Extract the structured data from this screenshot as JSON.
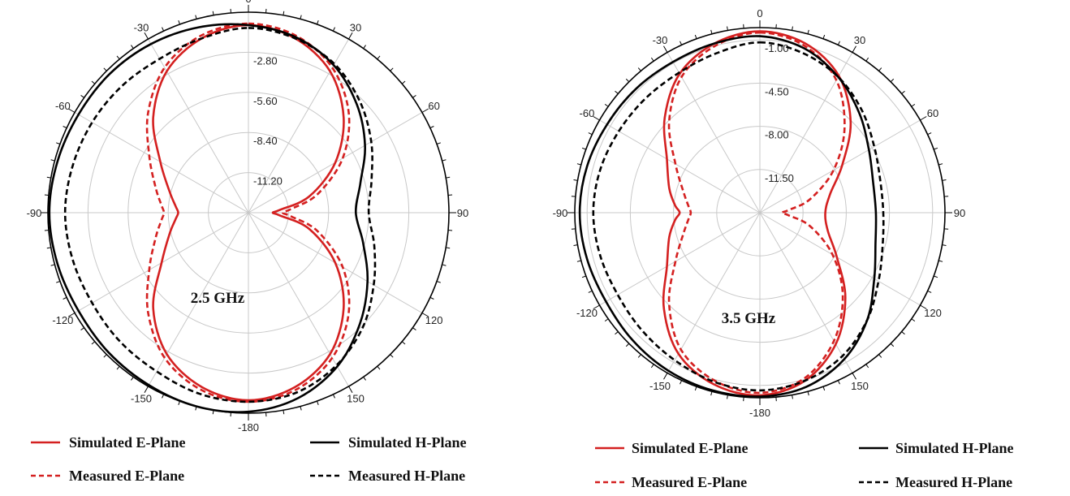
{
  "chart_data": [
    {
      "type": "polar-line",
      "annotation": "2.5 GHz",
      "angle_ticks": [
        "0",
        "30",
        "60",
        "90",
        "120",
        "150",
        "-180",
        "-150",
        "-120",
        "-90",
        "-60",
        "-30"
      ],
      "angle_tick_values": [
        0,
        30,
        60,
        90,
        120,
        150,
        180,
        210,
        240,
        270,
        300,
        330
      ],
      "radial_ticks": [
        "-2.80",
        "-5.60",
        "-8.40",
        "-11.20"
      ],
      "radial_tick_values": [
        -2.8,
        -5.6,
        -8.4,
        -11.2
      ],
      "rlim": [
        -14,
        0
      ],
      "grid": true,
      "legend_position": "bottom",
      "series": [
        {
          "name": "Simulated E-Plane",
          "color": "#d42020",
          "dash": "solid",
          "theta": [
            0,
            15,
            30,
            45,
            60,
            75,
            85,
            90,
            95,
            105,
            120,
            135,
            150,
            165,
            180,
            195,
            210,
            225,
            240,
            255,
            265,
            270,
            275,
            285,
            300,
            315,
            330,
            345
          ],
          "r": [
            -0.9,
            -1.4,
            -2.6,
            -4.6,
            -7.0,
            -9.6,
            -11.8,
            -12.3,
            -11.8,
            -9.6,
            -7.0,
            -4.6,
            -2.6,
            -1.4,
            -0.9,
            -1.4,
            -2.6,
            -4.6,
            -7.0,
            -8.3,
            -8.9,
            -9.1,
            -8.9,
            -8.3,
            -6.9,
            -4.6,
            -2.6,
            -1.4
          ]
        },
        {
          "name": "Measured E-Plane",
          "color": "#d42020",
          "dash": "dashed",
          "theta": [
            0,
            15,
            30,
            45,
            60,
            75,
            85,
            90,
            95,
            105,
            120,
            135,
            150,
            165,
            180,
            195,
            210,
            225,
            240,
            255,
            265,
            270,
            275,
            285,
            300,
            315,
            330,
            345
          ],
          "r": [
            -0.8,
            -1.2,
            -2.3,
            -4.1,
            -6.4,
            -9.0,
            -11.0,
            -11.6,
            -11.0,
            -9.0,
            -6.4,
            -4.1,
            -2.3,
            -1.2,
            -0.8,
            -1.2,
            -2.3,
            -4.1,
            -6.0,
            -7.3,
            -7.9,
            -8.1,
            -7.9,
            -7.3,
            -6.0,
            -4.1,
            -2.3,
            -1.2
          ]
        },
        {
          "name": "Simulated H-Plane",
          "color": "#000000",
          "dash": "solid",
          "theta": [
            0,
            15,
            30,
            45,
            60,
            75,
            90,
            105,
            120,
            135,
            150,
            165,
            180,
            195,
            210,
            225,
            240,
            255,
            270,
            285,
            300,
            315,
            330,
            345
          ],
          "r": [
            -0.9,
            -1.3,
            -2.1,
            -3.3,
            -4.6,
            -5.9,
            -6.5,
            -5.7,
            -4.4,
            -3.0,
            -1.6,
            -0.6,
            -0.1,
            0,
            -0.1,
            -0.2,
            -0.3,
            -0.2,
            -0.1,
            -0.2,
            -0.3,
            -0.3,
            -0.4,
            -0.6
          ]
        },
        {
          "name": "Measured H-Plane",
          "color": "#000000",
          "dash": "dashed",
          "theta": [
            0,
            15,
            30,
            45,
            60,
            75,
            90,
            105,
            120,
            135,
            150,
            165,
            180,
            195,
            210,
            225,
            240,
            255,
            270,
            285,
            300,
            315,
            330,
            345
          ],
          "r": [
            -1.1,
            -1.4,
            -2.0,
            -3.0,
            -4.1,
            -5.1,
            -5.6,
            -4.9,
            -3.9,
            -2.7,
            -1.7,
            -1.0,
            -0.8,
            -0.9,
            -1.2,
            -1.3,
            -1.4,
            -1.3,
            -1.2,
            -1.3,
            -1.4,
            -1.5,
            -1.6,
            -1.4
          ]
        }
      ]
    },
    {
      "type": "polar-line",
      "annotation": "3.5 GHz",
      "angle_ticks": [
        "0",
        "30",
        "60",
        "90",
        "120",
        "150",
        "-180",
        "-150",
        "-120",
        "-90",
        "-60",
        "-30"
      ],
      "angle_tick_values": [
        0,
        30,
        60,
        90,
        120,
        150,
        180,
        210,
        240,
        270,
        300,
        330
      ],
      "radial_ticks": [
        "-1.00",
        "-4.50",
        "-8.00",
        "-11.50"
      ],
      "radial_tick_values": [
        -1.0,
        -4.5,
        -8.0,
        -11.5
      ],
      "rlim": [
        -15,
        0
      ],
      "grid": true,
      "legend_position": "bottom",
      "series": [
        {
          "name": "Simulated E-Plane",
          "color": "#d42020",
          "dash": "solid",
          "theta": [
            0,
            15,
            30,
            45,
            60,
            75,
            90,
            105,
            120,
            135,
            150,
            165,
            180,
            195,
            210,
            225,
            240,
            255,
            265,
            270,
            275,
            285,
            300,
            315,
            330,
            345
          ],
          "r": [
            -0.3,
            -0.8,
            -2.2,
            -4.6,
            -7.3,
            -9.1,
            -9.7,
            -9.3,
            -7.8,
            -5.2,
            -2.7,
            -0.9,
            -0.2,
            -0.6,
            -1.8,
            -4.0,
            -6.3,
            -7.4,
            -8.1,
            -8.5,
            -8.1,
            -7.4,
            -6.3,
            -4.1,
            -2.0,
            -0.8
          ]
        },
        {
          "name": "Measured E-Plane",
          "color": "#d42020",
          "dash": "dashed",
          "theta": [
            0,
            15,
            30,
            45,
            60,
            75,
            85,
            90,
            95,
            105,
            120,
            135,
            150,
            165,
            180,
            195,
            210,
            225,
            240,
            255,
            265,
            270,
            275,
            285,
            300,
            315,
            330,
            345
          ],
          "r": [
            -0.4,
            -1.0,
            -2.6,
            -5.3,
            -8.1,
            -10.8,
            -12.7,
            -13.2,
            -12.7,
            -10.8,
            -8.2,
            -5.5,
            -3.0,
            -1.1,
            -0.4,
            -0.9,
            -2.2,
            -4.6,
            -7.1,
            -8.6,
            -9.2,
            -9.4,
            -9.2,
            -8.6,
            -7.1,
            -4.6,
            -2.3,
            -1.0
          ]
        },
        {
          "name": "Simulated H-Plane",
          "color": "#000000",
          "dash": "solid",
          "theta": [
            0,
            15,
            30,
            45,
            60,
            75,
            90,
            105,
            120,
            135,
            150,
            165,
            180,
            195,
            210,
            225,
            240,
            255,
            270,
            285,
            300,
            315,
            330,
            345
          ],
          "r": [
            -0.7,
            -1.2,
            -2.3,
            -3.6,
            -4.8,
            -5.5,
            -5.6,
            -5.3,
            -4.3,
            -2.7,
            -1.3,
            -0.4,
            -0.1,
            -0.1,
            -0.2,
            -0.4,
            -0.6,
            -0.5,
            -0.4,
            -0.5,
            -0.7,
            -0.8,
            -0.9,
            -0.8
          ]
        },
        {
          "name": "Measured H-Plane",
          "color": "#000000",
          "dash": "dashed",
          "theta": [
            0,
            15,
            30,
            45,
            60,
            75,
            90,
            105,
            120,
            135,
            150,
            165,
            180,
            195,
            210,
            225,
            240,
            255,
            270,
            285,
            300,
            315,
            330,
            345
          ],
          "r": [
            -1.2,
            -1.6,
            -2.3,
            -3.3,
            -4.3,
            -4.9,
            -5.0,
            -4.7,
            -3.9,
            -2.7,
            -1.6,
            -0.9,
            -0.6,
            -0.8,
            -1.2,
            -1.5,
            -1.7,
            -1.6,
            -1.5,
            -1.6,
            -1.8,
            -1.9,
            -1.9,
            -1.6
          ]
        }
      ]
    }
  ]
}
